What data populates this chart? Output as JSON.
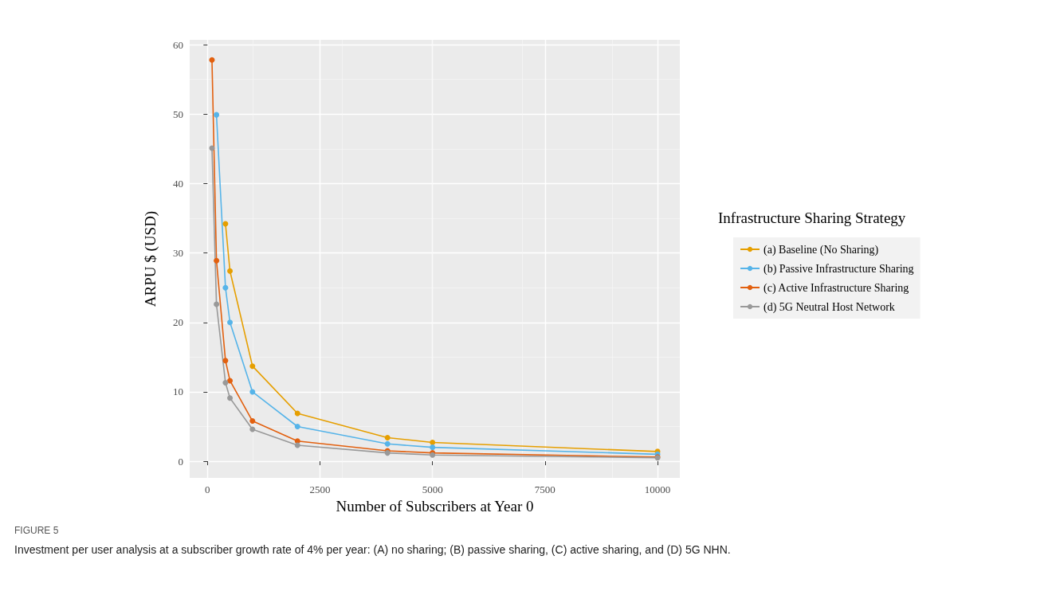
{
  "chart_data": {
    "type": "line",
    "xlabel": "Number of Subscribers at Year 0",
    "ylabel": "ARPU $ (USD)",
    "legend_title": "Infrastructure Sharing Strategy",
    "annotations": [
      "FIGURE 5",
      "Investment per user analysis at a subscriber growth rate of 4% per year: (A) no sharing; (B) passive sharing, (C) active sharing, and (D) 5G NHN."
    ],
    "series": [
      {
        "name": "(a) Baseline (No Sharing)",
        "color": "#e69f00",
        "x": [
          400,
          500,
          1000,
          2000,
          4000,
          5000,
          10000
        ],
        "values": [
          34.2,
          27.4,
          13.7,
          6.9,
          3.4,
          2.7,
          1.4
        ]
      },
      {
        "name": "(b) Passive Infrastructure Sharing",
        "color": "#56b4e9",
        "x": [
          200,
          400,
          500,
          1000,
          2000,
          4000,
          5000,
          10000
        ],
        "values": [
          49.9,
          25,
          20,
          10,
          5,
          2.5,
          2,
          1
        ]
      },
      {
        "name": "(c) Active Infrastructure Sharing",
        "color": "#e2600f",
        "x": [
          100,
          200,
          400,
          500,
          1000,
          2000,
          4000,
          5000,
          10000
        ],
        "values": [
          57.8,
          28.9,
          14.5,
          11.6,
          5.8,
          2.9,
          1.5,
          1.2,
          0.6
        ]
      },
      {
        "name": "(d) 5G Neutral Host Network",
        "color": "#999999",
        "x": [
          100,
          200,
          400,
          500,
          1000,
          2000,
          4000,
          5000,
          10000
        ],
        "values": [
          45.1,
          22.6,
          11.3,
          9.1,
          4.6,
          2.3,
          1.2,
          0.9,
          0.5
        ]
      }
    ],
    "xlim": [
      -395,
      10495
    ],
    "xticks": [
      0,
      2500,
      5000,
      7500,
      10000
    ],
    "ylim": [
      -2.4,
      60.7
    ],
    "yticks": [
      0,
      10,
      20,
      30,
      40,
      50,
      60
    ],
    "grid": true,
    "legend": "right",
    "marker": "circle",
    "line_style": "solid"
  }
}
